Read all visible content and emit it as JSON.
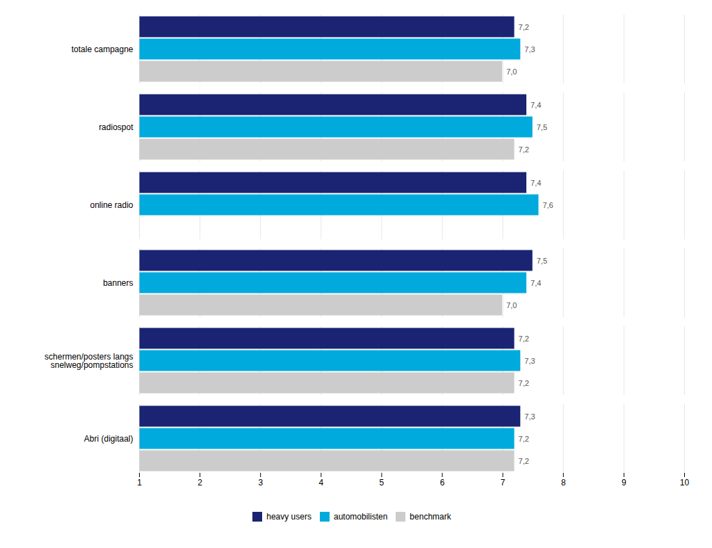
{
  "chart_data": {
    "type": "bar",
    "orientation": "horizontal",
    "categories": [
      "totale campagne",
      "radiospot",
      "online radio",
      "banners",
      "schermen/posters langs\nsnelweg/pompstations",
      "Abri (digitaal)"
    ],
    "series": [
      {
        "name": "heavy users",
        "color": "#1a2472",
        "values": [
          7.2,
          7.4,
          7.4,
          7.5,
          7.2,
          7.3
        ],
        "value_labels": [
          "7,2",
          "7,4",
          "7,4",
          "7,5",
          "7,2",
          "7,3"
        ]
      },
      {
        "name": "automobilisten",
        "color": "#00aadd",
        "values": [
          7.3,
          7.5,
          7.6,
          7.4,
          7.3,
          7.2
        ],
        "value_labels": [
          "7,3",
          "7,5",
          "7,6",
          "7,4",
          "7,3",
          "7,2"
        ]
      },
      {
        "name": "benchmark",
        "color": "#cccccc",
        "values": [
          7.0,
          7.2,
          null,
          7.0,
          7.2,
          7.2
        ],
        "value_labels": [
          "7,0",
          "7,2",
          null,
          "7,0",
          "7,2",
          "7,2"
        ]
      }
    ],
    "xlim": [
      1,
      10
    ],
    "xticks": [
      1,
      2,
      3,
      4,
      5,
      6,
      7,
      8,
      9,
      10
    ],
    "grid": true,
    "data_labels": true,
    "legend": "bottom"
  }
}
